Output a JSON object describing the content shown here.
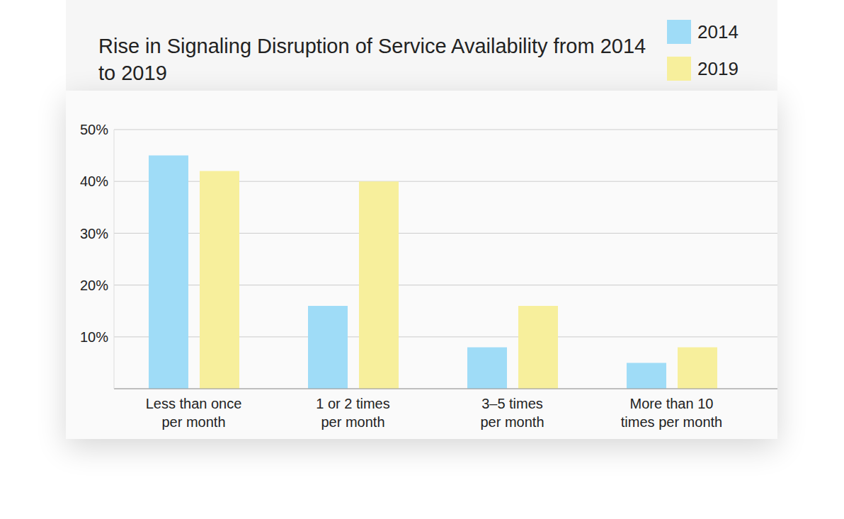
{
  "chart_data": {
    "type": "bar",
    "title": "Rise in Signaling Disruption of Service Availability from 2014 to 2019",
    "categories": [
      "Less than once per month",
      "1 or 2 times per month",
      "3–5 times per month",
      "More than 10 times per month"
    ],
    "series": [
      {
        "name": "2014",
        "color": "#9fdcf7",
        "values": [
          45,
          16,
          8,
          5
        ]
      },
      {
        "name": "2019",
        "color": "#f7ef9c",
        "values": [
          42,
          40,
          16,
          8
        ]
      }
    ],
    "ylim": [
      0,
      50
    ],
    "yticks": [
      {
        "value": 10,
        "label": "10%"
      },
      {
        "value": 20,
        "label": "20%"
      },
      {
        "value": 30,
        "label": "30%"
      },
      {
        "value": 40,
        "label": "40%"
      },
      {
        "value": 50,
        "label": "50%"
      }
    ],
    "grid": true,
    "legend": "top-right"
  }
}
